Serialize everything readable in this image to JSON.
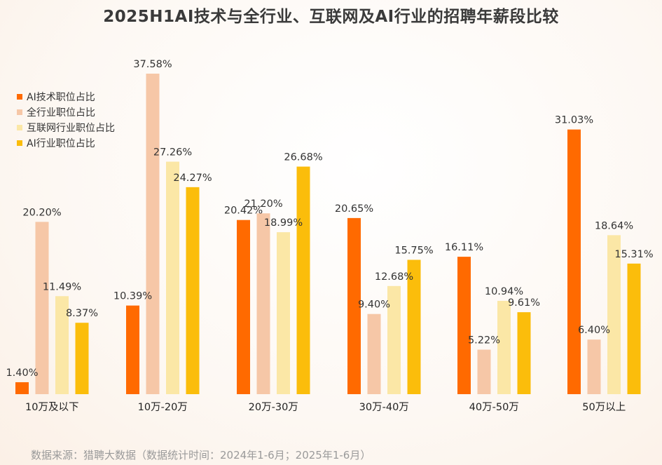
{
  "chart_data": {
    "type": "bar",
    "title": "2025H1AI技术与全行业、互联网及AI行业的招聘年薪段比较",
    "categories": [
      "10万及以下",
      "10万-20万",
      "20万-30万",
      "30万-40万",
      "40万-50万",
      "50万以上"
    ],
    "series": [
      {
        "name": "AI技术职位占比",
        "color": "#ff6a00",
        "values": [
          1.4,
          10.39,
          20.42,
          20.65,
          16.11,
          31.03
        ]
      },
      {
        "name": "全行业职位占比",
        "color": "#f6c7a7",
        "values": [
          20.2,
          37.58,
          21.2,
          9.4,
          5.22,
          6.4
        ]
      },
      {
        "name": "互联网行业职位占比",
        "color": "#fbe7a6",
        "values": [
          11.49,
          27.26,
          18.99,
          12.68,
          10.94,
          18.64
        ]
      },
      {
        "name": "AI行业职位占比",
        "color": "#fbbd0b",
        "values": [
          8.37,
          24.27,
          26.68,
          15.75,
          9.61,
          15.31
        ]
      }
    ],
    "value_suffix": "%",
    "ylim": [
      0,
      37.58
    ],
    "grid": false,
    "legend_position": "top-left"
  },
  "source_text": "数据来源：猎聘大数据（数据统计时间：2024年1-6月；2025年1-6月）"
}
